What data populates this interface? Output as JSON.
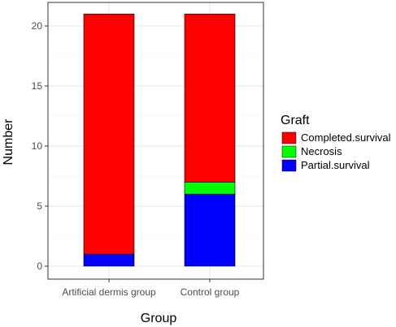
{
  "chart_data": {
    "type": "bar",
    "stacked": true,
    "xlabel": "Group",
    "ylabel": "Number",
    "categories": [
      "Artificial dermis group",
      "Control group"
    ],
    "series": [
      {
        "name": "Partial.survival",
        "color": "#0000FF",
        "values": [
          1,
          6
        ]
      },
      {
        "name": "Necrosis",
        "color": "#00FF00",
        "values": [
          0,
          1
        ]
      },
      {
        "name": "Completed.survival",
        "color": "#FF0000",
        "values": [
          20,
          14
        ]
      }
    ],
    "ylim": [
      0,
      21
    ],
    "yticks": [
      0,
      5,
      10,
      15,
      20
    ],
    "grid": true,
    "legend": {
      "title": "Graft",
      "placement": "right",
      "items": [
        {
          "label": "Completed.survival",
          "color": "#FF0000"
        },
        {
          "label": "Necrosis",
          "color": "#00FF00"
        },
        {
          "label": "Partial.survival",
          "color": "#0000FF"
        }
      ]
    }
  }
}
